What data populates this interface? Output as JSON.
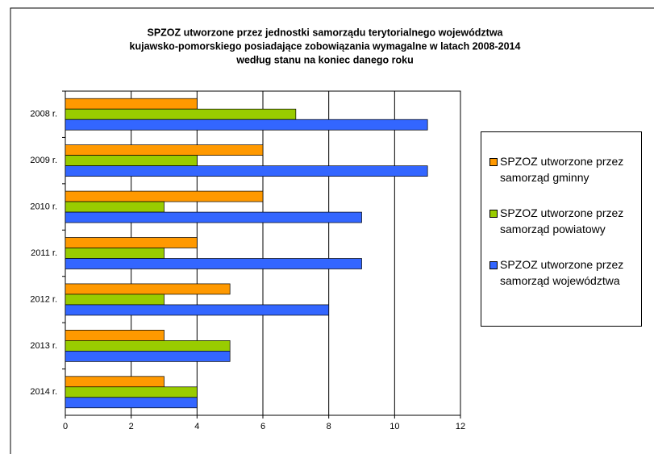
{
  "chart_data": {
    "type": "barh",
    "title": [
      "SPZOZ utworzone przez jednostki samorządu terytorialnego województwa",
      "kujawsko-pomorskiego posiadające zobowiązania wymagalne w latach 2008-2014",
      "według stanu na koniec danego roku"
    ],
    "categories": [
      "2008 r.",
      "2009 r.",
      "2010 r.",
      "2011 r.",
      "2012 r.",
      "2013 r.",
      "2014 r."
    ],
    "series": [
      {
        "name": "SPZOZ utworzone przez samorząd gminny",
        "color": "#ff9900",
        "values": [
          4,
          6,
          6,
          4,
          5,
          3,
          3
        ]
      },
      {
        "name": "SPZOZ utworzone przez samorząd powiatowy",
        "color": "#99cc00",
        "values": [
          7,
          4,
          3,
          3,
          3,
          5,
          4
        ]
      },
      {
        "name": "SPZOZ utworzone przez samorząd województwa",
        "color": "#3366ff",
        "values": [
          11,
          11,
          9,
          9,
          8,
          5,
          4
        ]
      }
    ],
    "xlim": [
      0,
      12
    ],
    "xticks": [
      0,
      2,
      4,
      6,
      8,
      10,
      12
    ],
    "grid": true,
    "legend": "right"
  }
}
